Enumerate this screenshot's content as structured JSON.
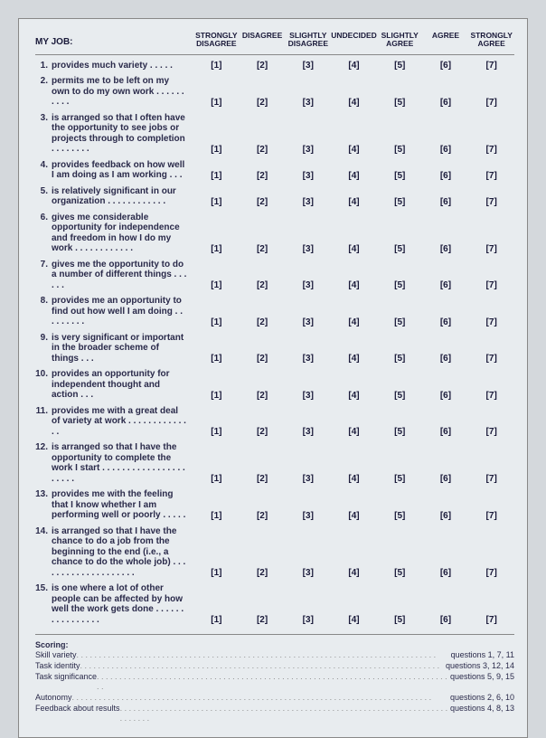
{
  "heading": "MY JOB:",
  "columns": [
    "STRONGLY\nDISAGREE",
    "DISAGREE",
    "SLIGHTLY\nDISAGREE",
    "UNDECIDED",
    "SLIGHTLY\nAGREE",
    "AGREE",
    "STRONGLY\nAGREE"
  ],
  "values": [
    "[1]",
    "[2]",
    "[3]",
    "[4]",
    "[5]",
    "[6]",
    "[7]"
  ],
  "questions": [
    {
      "n": "1.",
      "t": "provides much variety . . . . ."
    },
    {
      "n": "2.",
      "t": "permits me to be left on my own to do my own work . . . . . . . . . ."
    },
    {
      "n": "3.",
      "t": "is arranged so that I often have the opportunity to see jobs or projects through to completion . . . . . . . ."
    },
    {
      "n": "4.",
      "t": "provides feedback on how well I am doing as I am working . . ."
    },
    {
      "n": "5.",
      "t": "is relatively significant in our organization . . . . . . . . . . . ."
    },
    {
      "n": "6.",
      "t": "gives me considerable opportunity for independence and freedom in how I do my work . . . . . . . . . . . ."
    },
    {
      "n": "7.",
      "t": "gives me the opportunity to do a number of different things . . . . . ."
    },
    {
      "n": "8.",
      "t": "provides me an opportunity to find out how well I am doing . . . . . . . . ."
    },
    {
      "n": "9.",
      "t": "is very significant or important in the broader scheme of things . . ."
    },
    {
      "n": "10.",
      "t": "provides an opportunity for independent thought and action . . ."
    },
    {
      "n": "11.",
      "t": "provides me with a great deal of variety at work . . . . . . . . . . . . . ."
    },
    {
      "n": "12.",
      "t": "is arranged so that I have the opportunity to complete the work I start . . . . . . . . . . . . . . . . . . . . . ."
    },
    {
      "n": "13.",
      "t": "provides me with the feeling that I know whether I am performing well or poorly . . . . ."
    },
    {
      "n": "14.",
      "t": "is arranged so that I have the chance to do a job from the beginning to the end (i.e., a chance to do the whole job) . . . . . . . . . . . . . . . . . . . ."
    },
    {
      "n": "15.",
      "t": "is one where a lot of other people can be affected by how well the work gets done . . . . . . . . . . . . . . . ."
    }
  ],
  "scoring": {
    "title": "Scoring:",
    "rows": [
      {
        "label": "Skill variety",
        "ref": "questions 1, 7, 11"
      },
      {
        "label": "Task identity",
        "ref": "questions 3, 12, 14"
      },
      {
        "label": "Task significance",
        "ref": "questions 5, 9, 15"
      },
      {
        "label": "Autonomy",
        "ref": "questions 2, 6, 10"
      },
      {
        "label": "Feedback about results",
        "ref": "questions 4, 8, 13"
      }
    ]
  }
}
